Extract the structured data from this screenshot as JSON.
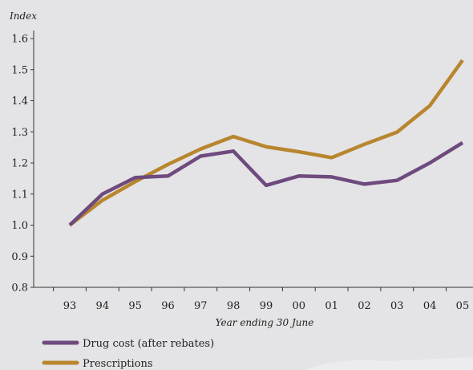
{
  "chart_data": {
    "type": "line",
    "ylabel": "Index",
    "xlabel": "Year ending 30 June",
    "categories": [
      "93",
      "94",
      "95",
      "96",
      "97",
      "98",
      "99",
      "00",
      "01",
      "02",
      "03",
      "04",
      "05"
    ],
    "ylim": [
      0.8,
      1.6
    ],
    "yticks": [
      "0.8",
      "0.9",
      "1.0",
      "1.1",
      "1.2",
      "1.3",
      "1.4",
      "1.5",
      "1.6"
    ],
    "grid": false,
    "legend_position": "bottom-left",
    "series": [
      {
        "name": "Drug cost (after rebates)",
        "color": "#6e4a7e",
        "values": [
          1.0,
          1.1,
          1.153,
          1.158,
          1.222,
          1.238,
          1.128,
          1.158,
          1.155,
          1.132,
          1.144,
          1.2,
          1.265
        ]
      },
      {
        "name": "Prescriptions",
        "color": "#b8862e",
        "values": [
          1.0,
          1.08,
          1.14,
          1.195,
          1.245,
          1.285,
          1.252,
          1.236,
          1.217,
          1.26,
          1.299,
          1.384,
          1.53
        ]
      }
    ]
  }
}
